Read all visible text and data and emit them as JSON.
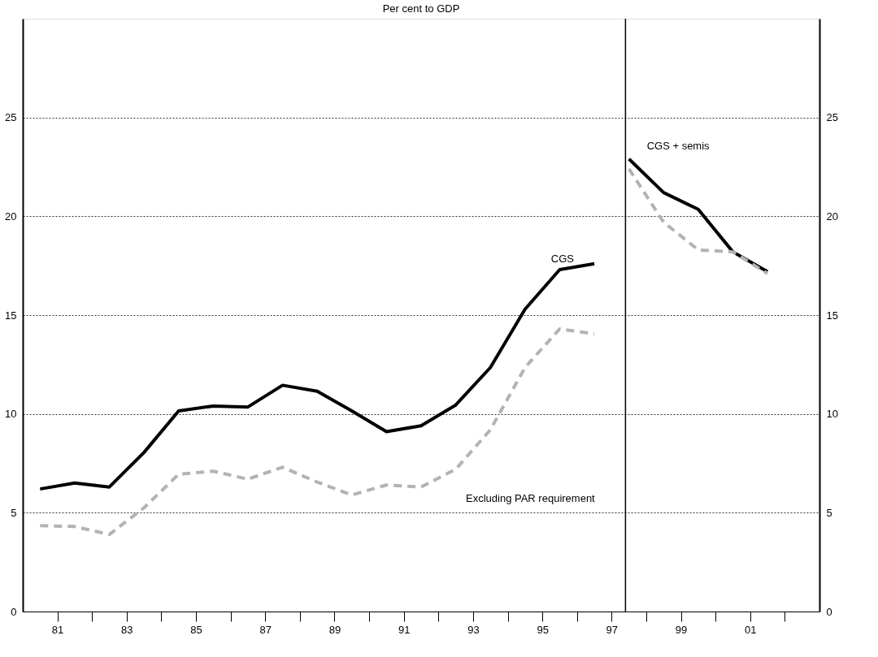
{
  "chart_data": {
    "type": "line",
    "title": "Per cent to GDP",
    "xlim": [
      1980,
      2003
    ],
    "xticks": [
      {
        "value": 1981,
        "label": "81"
      },
      {
        "value": 1982,
        "label": null
      },
      {
        "value": 1983,
        "label": "83"
      },
      {
        "value": 1984,
        "label": null
      },
      {
        "value": 1985,
        "label": "85"
      },
      {
        "value": 1986,
        "label": null
      },
      {
        "value": 1987,
        "label": "87"
      },
      {
        "value": 1988,
        "label": null
      },
      {
        "value": 1989,
        "label": "89"
      },
      {
        "value": 1990,
        "label": null
      },
      {
        "value": 1991,
        "label": "91"
      },
      {
        "value": 1992,
        "label": null
      },
      {
        "value": 1993,
        "label": "93"
      },
      {
        "value": 1994,
        "label": null
      },
      {
        "value": 1995,
        "label": "95"
      },
      {
        "value": 1996,
        "label": null
      },
      {
        "value": 1997,
        "label": "97"
      },
      {
        "value": 1998,
        "label": null
      },
      {
        "value": 1999,
        "label": "99"
      },
      {
        "value": 2000,
        "label": null
      },
      {
        "value": 2001,
        "label": "01"
      },
      {
        "value": 2002,
        "label": null
      }
    ],
    "ylim": [
      0,
      30
    ],
    "yticks": [
      0,
      5,
      10,
      15,
      20,
      25
    ],
    "y2lim": [
      0,
      30
    ],
    "y2ticks": [
      0,
      5,
      10,
      15,
      20,
      25
    ],
    "grid": "y",
    "marker": "none",
    "series": [
      {
        "name": "CGS",
        "color": "#000000",
        "line_style": "solid",
        "x": [
          1980.5,
          1981.5,
          1982.5,
          1983.5,
          1984.5,
          1985.5,
          1986.5,
          1987.5,
          1988.5,
          1989.5,
          1990.5,
          1991.5,
          1992.5,
          1993.5,
          1994.5,
          1995.5,
          1996.5
        ],
        "values": [
          6.2,
          6.5,
          6.3,
          8.05,
          10.15,
          10.4,
          10.35,
          11.45,
          11.15,
          10.15,
          9.1,
          9.4,
          10.45,
          12.35,
          15.3,
          17.3,
          17.6
        ]
      },
      {
        "name": "Excluding PAR requirement",
        "color": "#b3b3b3",
        "line_style": "dashed",
        "x": [
          1980.5,
          1981.5,
          1982.5,
          1983.5,
          1984.5,
          1985.5,
          1986.5,
          1987.5,
          1988.5,
          1989.5,
          1990.5,
          1991.5,
          1992.5,
          1993.5,
          1994.5,
          1995.5,
          1996.5
        ],
        "values": [
          4.35,
          4.3,
          3.9,
          5.25,
          6.95,
          7.1,
          6.7,
          7.3,
          6.55,
          5.9,
          6.4,
          6.3,
          7.2,
          9.2,
          12.35,
          14.3,
          14.05
        ]
      },
      {
        "name": "CGS + semis",
        "color": "#000000",
        "line_style": "solid",
        "x": [
          1997.5,
          1998.5,
          1999.5,
          2000.5,
          2001.5
        ],
        "values": [
          22.9,
          21.2,
          20.35,
          18.2,
          17.2
        ]
      },
      {
        "color": "#b3b3b3",
        "line_style": "dashed",
        "x": [
          1997.5,
          1998.5,
          1999.5,
          2000.5,
          2001.5
        ],
        "values": [
          22.4,
          19.7,
          18.3,
          18.2,
          17.1
        ]
      }
    ],
    "ref_lines": [
      {
        "axis": "x",
        "value": 1997.4,
        "color": "#000000",
        "line_style": "solid"
      }
    ]
  }
}
